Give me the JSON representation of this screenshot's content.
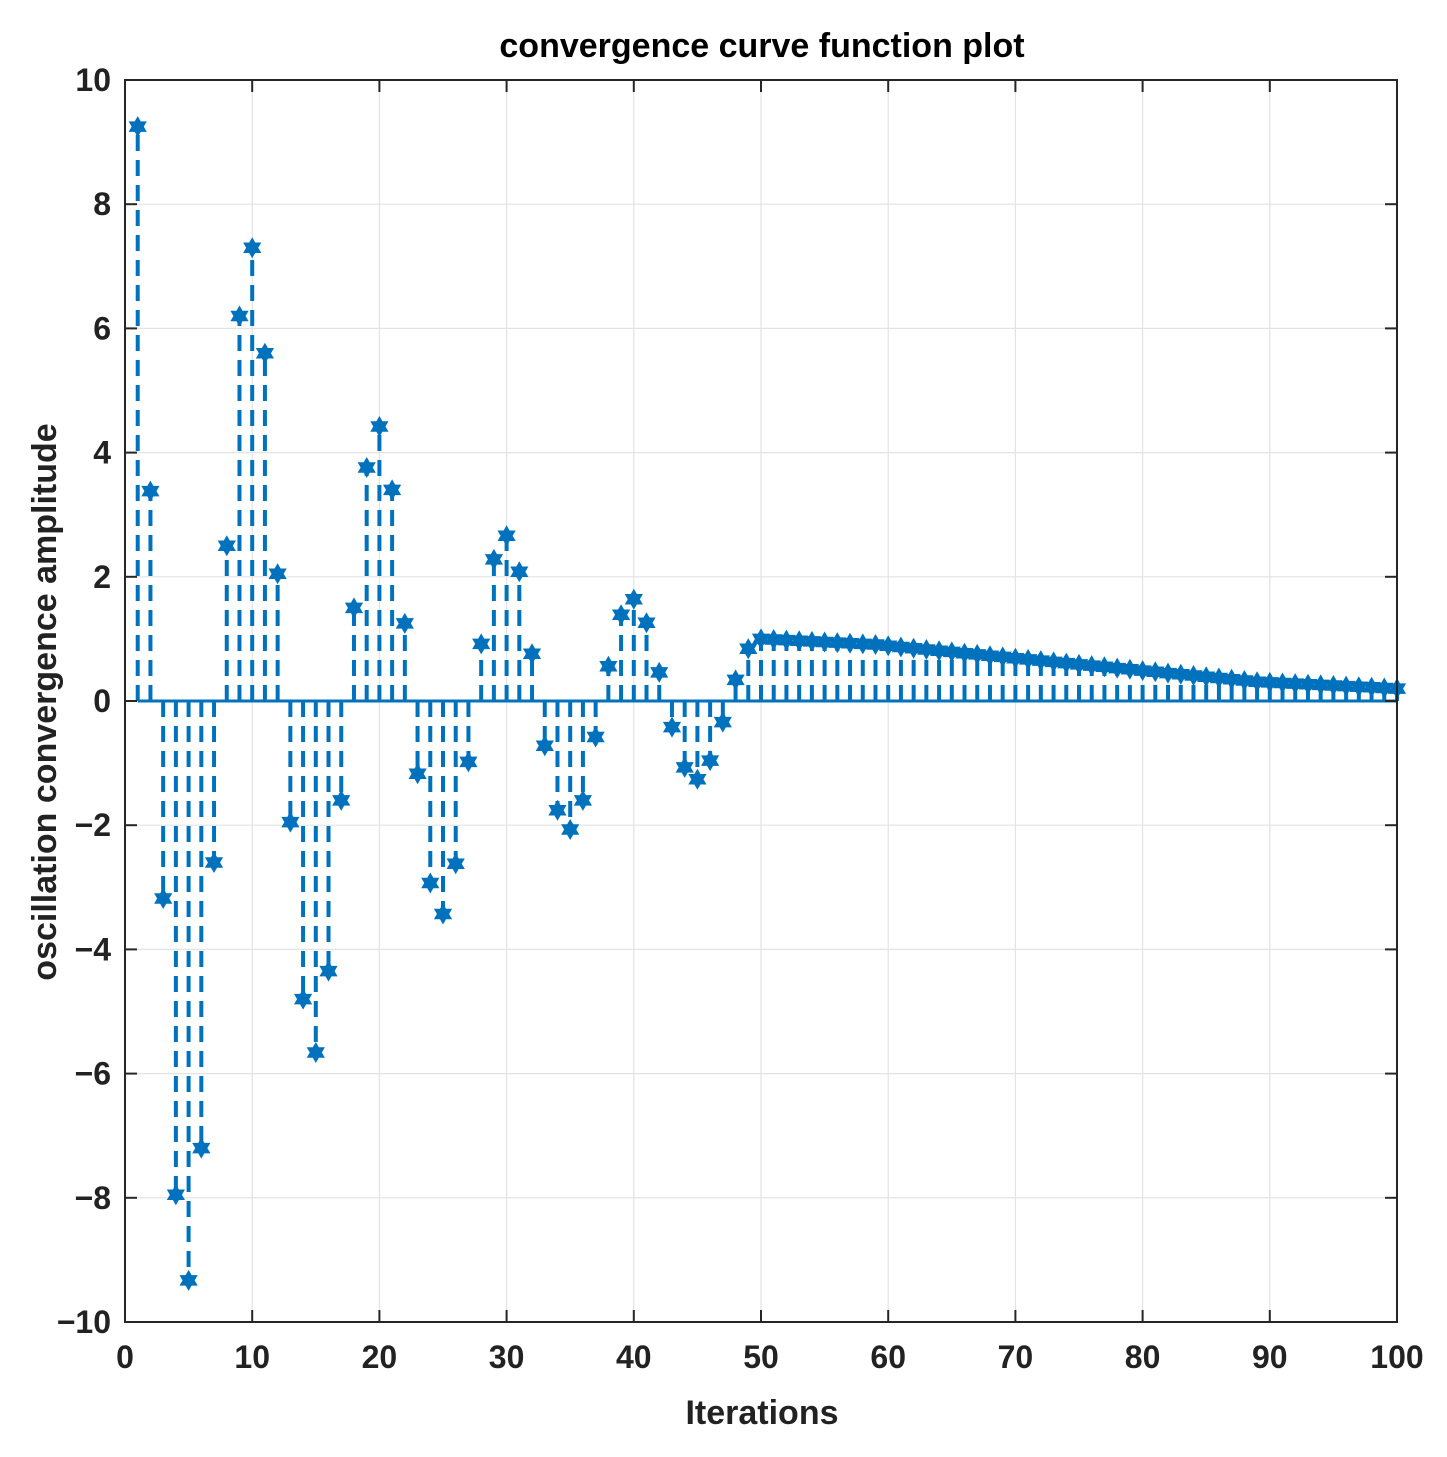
{
  "chart_data": {
    "type": "stem",
    "title": "convergence curve function plot",
    "xlabel": "Iterations",
    "ylabel": "oscillation convergence amplitude",
    "xlim": [
      0,
      100
    ],
    "ylim": [
      -10,
      10
    ],
    "grid": true,
    "marker": "hexagram",
    "line_style": "dashed",
    "color": "#0072BD",
    "x_ticks": [
      0,
      10,
      20,
      30,
      40,
      50,
      60,
      70,
      80,
      90,
      100
    ],
    "x_tick_labels": [
      "0",
      "10",
      "20",
      "30",
      "40",
      "50",
      "60",
      "70",
      "80",
      "90",
      "100"
    ],
    "y_ticks": [
      -10,
      -8,
      -6,
      -4,
      -2,
      0,
      2,
      4,
      6,
      8,
      10
    ],
    "y_tick_labels": [
      "−10",
      "−8",
      "−6",
      "−4",
      "−2",
      "0",
      "2",
      "4",
      "6",
      "8",
      "10"
    ],
    "x": [
      1,
      2,
      3,
      4,
      5,
      6,
      7,
      8,
      9,
      10,
      11,
      12,
      13,
      14,
      15,
      16,
      17,
      18,
      19,
      20,
      21,
      22,
      23,
      24,
      25,
      26,
      27,
      28,
      29,
      30,
      31,
      32,
      33,
      34,
      35,
      36,
      37,
      38,
      39,
      40,
      41,
      42,
      43,
      44,
      45,
      46,
      47,
      48,
      49,
      50,
      51,
      52,
      53,
      54,
      55,
      56,
      57,
      58,
      59,
      60,
      61,
      62,
      63,
      64,
      65,
      66,
      67,
      68,
      69,
      70,
      71,
      72,
      73,
      74,
      75,
      76,
      77,
      78,
      79,
      80,
      81,
      82,
      83,
      84,
      85,
      86,
      87,
      88,
      89,
      90,
      91,
      92,
      93,
      94,
      95,
      96,
      97,
      98,
      99,
      100
    ],
    "values": [
      9.25,
      3.38,
      -3.18,
      -7.95,
      -9.33,
      -7.2,
      -2.6,
      2.5,
      6.2,
      7.3,
      5.6,
      2.05,
      -1.95,
      -4.8,
      -5.66,
      -4.35,
      -1.6,
      1.5,
      3.76,
      4.42,
      3.4,
      1.25,
      -1.17,
      -2.93,
      -3.43,
      -2.62,
      -0.98,
      0.92,
      2.28,
      2.66,
      2.08,
      0.76,
      -0.72,
      -1.76,
      -2.07,
      -1.6,
      -0.58,
      0.56,
      1.39,
      1.64,
      1.26,
      0.46,
      -0.42,
      -1.07,
      -1.26,
      -0.96,
      -0.34,
      0.34,
      0.84,
      1.0,
      0.99,
      0.98,
      0.97,
      0.96,
      0.95,
      0.94,
      0.93,
      0.92,
      0.91,
      0.89,
      0.87,
      0.85,
      0.83,
      0.81,
      0.79,
      0.77,
      0.75,
      0.73,
      0.71,
      0.69,
      0.67,
      0.65,
      0.63,
      0.61,
      0.59,
      0.57,
      0.55,
      0.53,
      0.51,
      0.49,
      0.47,
      0.45,
      0.43,
      0.41,
      0.39,
      0.37,
      0.35,
      0.33,
      0.31,
      0.3,
      0.29,
      0.28,
      0.27,
      0.26,
      0.25,
      0.24,
      0.23,
      0.22,
      0.21,
      0.2
    ]
  }
}
